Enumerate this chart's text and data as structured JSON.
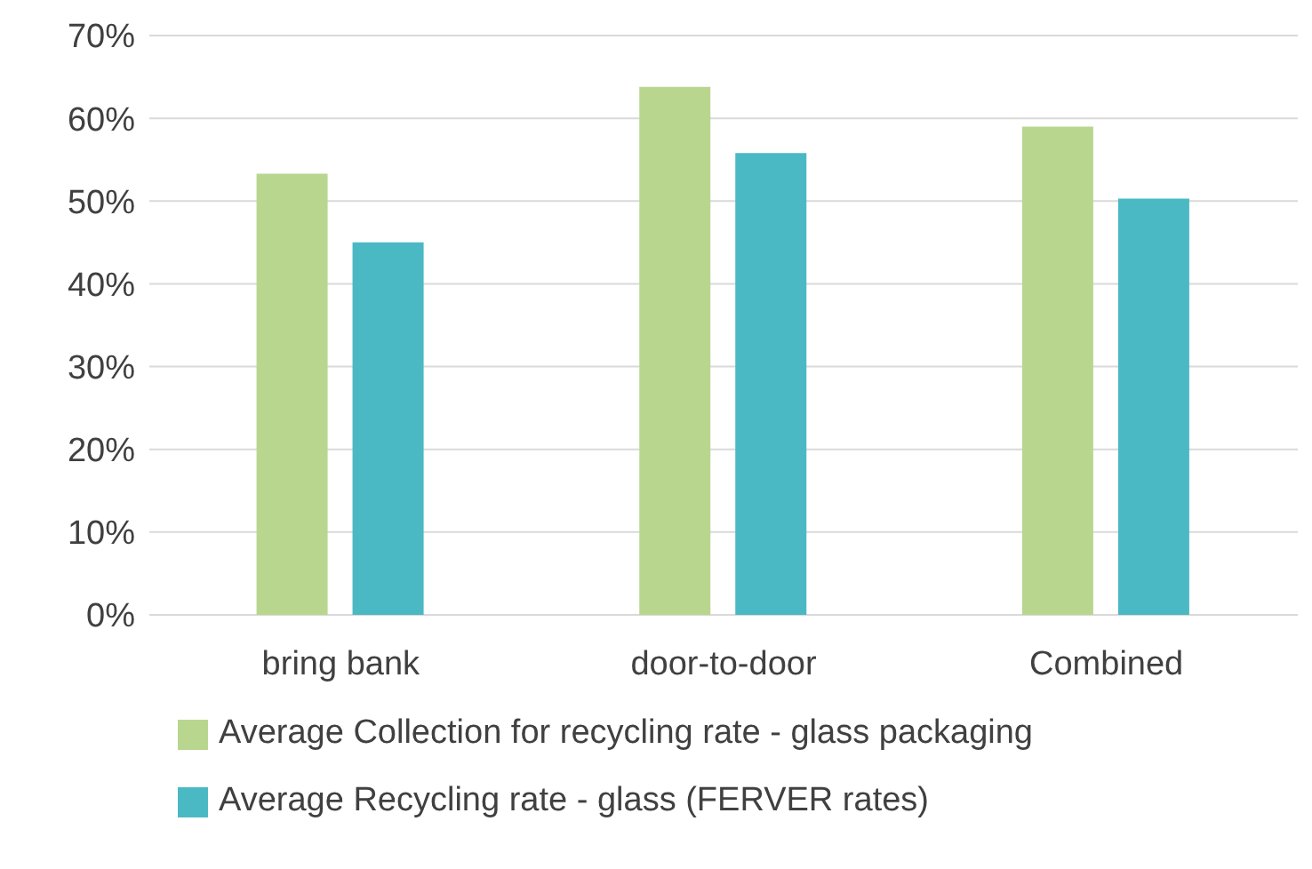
{
  "chart_data": {
    "type": "bar",
    "categories": [
      "bring bank",
      "door-to-door",
      "Combined"
    ],
    "series": [
      {
        "name": "Average Collection for recycling rate - glass packaging",
        "color": "#b9d68f",
        "values": [
          53.3,
          63.8,
          59
        ]
      },
      {
        "name": "Average Recycling rate - glass (FERVER rates)",
        "color": "#4ab9c4",
        "values": [
          45,
          55.8,
          50.3
        ]
      }
    ],
    "ylim": [
      0,
      70
    ],
    "yticks": [
      {
        "value": 0,
        "label": "0%"
      },
      {
        "value": 10,
        "label": "10%"
      },
      {
        "value": 20,
        "label": "20%"
      },
      {
        "value": 30,
        "label": "30%"
      },
      {
        "value": 40,
        "label": "40%"
      },
      {
        "value": 50,
        "label": "50%"
      },
      {
        "value": 60,
        "label": "60%"
      },
      {
        "value": 70,
        "label": "70%"
      }
    ],
    "grid": "y",
    "legend": "bottom"
  }
}
